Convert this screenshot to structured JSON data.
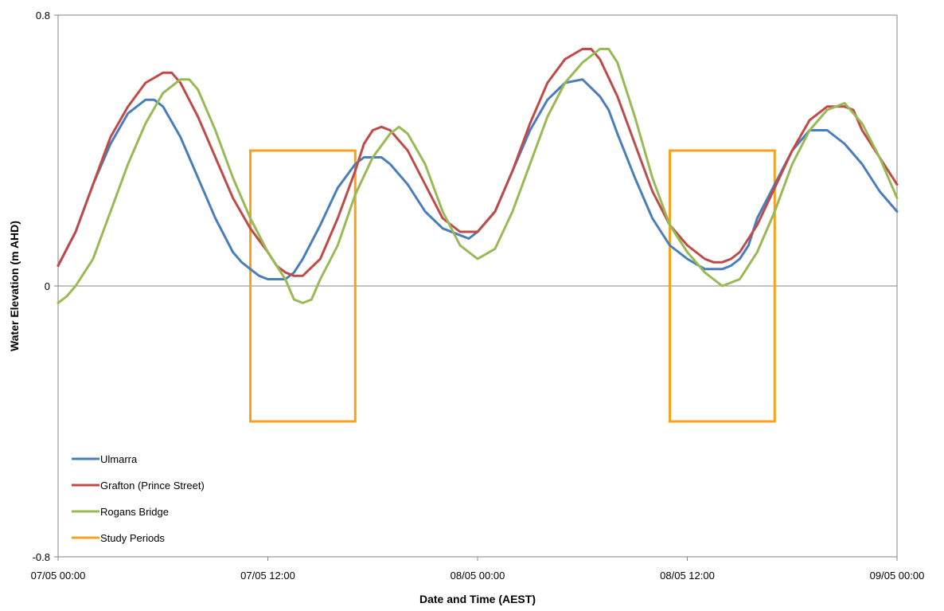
{
  "chart_data": {
    "type": "line",
    "xlabel": "Date and Time (AEST)",
    "ylabel": "Water Elevation (m AHD)",
    "xlim_hours": [
      0,
      48
    ],
    "ylim": [
      -0.8,
      0.8
    ],
    "x_ticks": [
      {
        "hour": 0,
        "label": "07/05 00:00"
      },
      {
        "hour": 12,
        "label": "07/05 12:00"
      },
      {
        "hour": 24,
        "label": "08/05 00:00"
      },
      {
        "hour": 36,
        "label": "08/05 12:00"
      },
      {
        "hour": 48,
        "label": "09/05 00:00"
      }
    ],
    "y_ticks": [
      {
        "value": 0.8,
        "label": "0.8"
      },
      {
        "value": 0,
        "label": "0"
      },
      {
        "value": -0.8,
        "label": "-0.8"
      }
    ],
    "legend_position": "bottom-left",
    "series": [
      {
        "name": "Ulmarra",
        "color": "#4A7EBB",
        "x": [
          0,
          1,
          2,
          3,
          4,
          5,
          5.5,
          6,
          7,
          8,
          9,
          10,
          10.5,
          11,
          11.5,
          12,
          13,
          13.5,
          14,
          15,
          16,
          17,
          17.5,
          18,
          18.5,
          19,
          20,
          21,
          22,
          23,
          23.5,
          24,
          25,
          26,
          27,
          28,
          29,
          30,
          31,
          31.5,
          32,
          33,
          34,
          35,
          36,
          37,
          38,
          38.5,
          39,
          39.5,
          40,
          41,
          42,
          43,
          44,
          45,
          46,
          47,
          48
        ],
        "y": [
          0.06,
          0.16,
          0.3,
          0.42,
          0.51,
          0.55,
          0.55,
          0.53,
          0.44,
          0.32,
          0.2,
          0.1,
          0.07,
          0.05,
          0.03,
          0.02,
          0.02,
          0.04,
          0.08,
          0.18,
          0.29,
          0.36,
          0.38,
          0.38,
          0.38,
          0.36,
          0.3,
          0.22,
          0.17,
          0.15,
          0.14,
          0.16,
          0.22,
          0.34,
          0.46,
          0.55,
          0.6,
          0.61,
          0.56,
          0.52,
          0.45,
          0.32,
          0.2,
          0.12,
          0.08,
          0.05,
          0.05,
          0.06,
          0.08,
          0.12,
          0.2,
          0.3,
          0.4,
          0.46,
          0.46,
          0.42,
          0.36,
          0.28,
          0.22
        ]
      },
      {
        "name": "Grafton (Prince Street)",
        "color": "#BE4B48",
        "x": [
          0,
          1,
          2,
          3,
          4,
          5,
          6,
          6.5,
          7,
          8,
          9,
          10,
          11,
          12,
          12.5,
          13,
          13.5,
          14,
          15,
          16,
          17,
          17.5,
          18,
          18.5,
          19,
          20,
          21,
          22,
          23,
          24,
          25,
          26,
          27,
          28,
          29,
          30,
          30.5,
          31,
          32,
          33,
          34,
          35,
          36,
          37,
          37.5,
          38,
          38.5,
          39,
          40,
          41,
          42,
          43,
          44,
          45,
          45.5,
          46,
          47,
          48
        ],
        "y": [
          0.06,
          0.16,
          0.3,
          0.44,
          0.53,
          0.6,
          0.63,
          0.63,
          0.6,
          0.5,
          0.38,
          0.26,
          0.17,
          0.1,
          0.06,
          0.04,
          0.03,
          0.03,
          0.08,
          0.2,
          0.34,
          0.42,
          0.46,
          0.47,
          0.46,
          0.4,
          0.3,
          0.2,
          0.16,
          0.16,
          0.22,
          0.34,
          0.48,
          0.6,
          0.67,
          0.7,
          0.7,
          0.67,
          0.56,
          0.42,
          0.28,
          0.18,
          0.12,
          0.08,
          0.07,
          0.07,
          0.08,
          0.1,
          0.18,
          0.29,
          0.4,
          0.49,
          0.53,
          0.53,
          0.52,
          0.46,
          0.38,
          0.3
        ]
      },
      {
        "name": "Rogans Bridge",
        "color": "#98B954",
        "x": [
          0,
          0.5,
          1,
          2,
          3,
          4,
          5,
          6,
          7,
          7.5,
          8,
          9,
          10,
          11,
          12,
          13,
          13.5,
          14,
          14.5,
          15,
          16,
          17,
          18,
          19,
          19.5,
          20,
          21,
          22,
          23,
          24,
          25,
          26,
          27,
          28,
          29,
          30,
          31,
          31.5,
          32,
          33,
          34,
          35,
          36,
          37,
          38,
          39,
          40,
          41,
          42,
          43,
          44,
          45,
          46,
          47,
          48
        ],
        "y": [
          -0.05,
          -0.03,
          0.0,
          0.08,
          0.22,
          0.36,
          0.48,
          0.57,
          0.61,
          0.61,
          0.58,
          0.46,
          0.32,
          0.2,
          0.1,
          0.02,
          -0.04,
          -0.05,
          -0.04,
          0.02,
          0.12,
          0.27,
          0.38,
          0.45,
          0.47,
          0.45,
          0.36,
          0.22,
          0.12,
          0.08,
          0.11,
          0.22,
          0.36,
          0.5,
          0.6,
          0.66,
          0.7,
          0.7,
          0.66,
          0.5,
          0.32,
          0.18,
          0.1,
          0.04,
          0.0,
          0.02,
          0.1,
          0.22,
          0.36,
          0.46,
          0.52,
          0.54,
          0.48,
          0.38,
          0.26
        ]
      }
    ],
    "study_periods": {
      "name": "Study Periods",
      "color": "#F7A21C",
      "y_range": [
        -0.4,
        0.4
      ],
      "periods": [
        [
          11,
          17
        ],
        [
          35,
          41
        ]
      ]
    }
  }
}
